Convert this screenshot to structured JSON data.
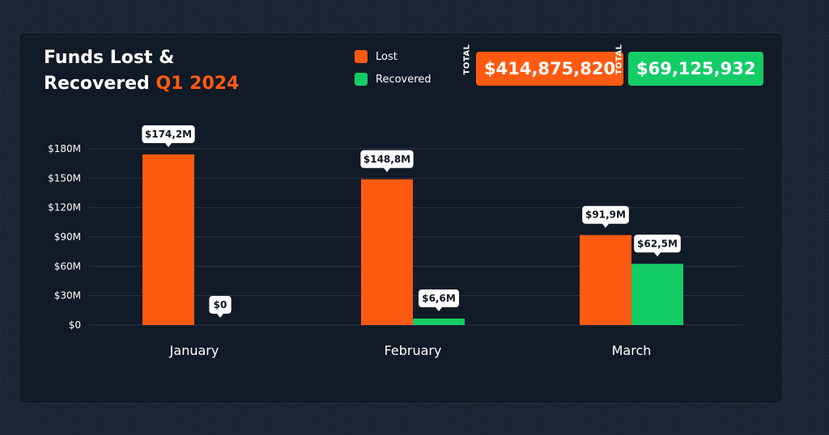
{
  "colors": {
    "lost": "#fe5a11",
    "recovered": "#14cc66",
    "grid": "#2a3647",
    "label_bg": "#ffffff"
  },
  "title": {
    "line1": "Funds Lost &",
    "line2": "Recovered",
    "highlight": "Q1 2024"
  },
  "legend": [
    {
      "label": "Lost",
      "color": "#fe5a11"
    },
    {
      "label": "Recovered",
      "color": "#14cc66"
    }
  ],
  "totals": [
    {
      "tag": "TOTAL",
      "value": "$414,875,820",
      "color": "#fe5a11"
    },
    {
      "tag": "TOTAL",
      "value": "$69,125,932",
      "color": "#14cc66"
    }
  ],
  "chart_data": {
    "type": "bar",
    "title": "Funds Lost & Recovered Q1 2024",
    "categories": [
      "January",
      "February",
      "March"
    ],
    "series": [
      {
        "name": "Lost",
        "values": [
          174.2,
          148.8,
          91.9
        ],
        "labels": [
          "$174,2M",
          "$148,8M",
          "$91,9M"
        ]
      },
      {
        "name": "Recovered",
        "values": [
          0,
          6.6,
          62.5
        ],
        "labels": [
          "$0",
          "$6,6M",
          "$62,5M"
        ]
      }
    ],
    "ylim": [
      0,
      180
    ],
    "yticks": [
      0,
      30,
      60,
      90,
      120,
      150,
      180
    ],
    "ytick_labels": [
      "$0",
      "$30M",
      "$60M",
      "$90M",
      "$120M",
      "$150M",
      "$180M"
    ],
    "xlabel": "",
    "ylabel": "",
    "grid": true,
    "legend_position": "top"
  }
}
